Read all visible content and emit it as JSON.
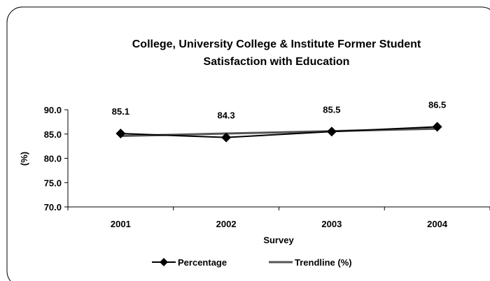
{
  "chart_data": {
    "type": "line",
    "title_lines": [
      "College, University College & Institute Former Student",
      "Satisfaction with Education"
    ],
    "xlabel": "Survey",
    "ylabel": "(%)",
    "categories": [
      "2001",
      "2002",
      "2003",
      "2004"
    ],
    "ylim": [
      70,
      90
    ],
    "yticks": [
      "70.0",
      "75.0",
      "80.0",
      "85.0",
      "90.0"
    ],
    "series": [
      {
        "name": "Percentage",
        "values": [
          85.1,
          84.3,
          85.5,
          86.5
        ],
        "data_labels": [
          "85.1",
          "84.3",
          "85.5",
          "86.5"
        ],
        "color": "#000000",
        "marker": "diamond"
      },
      {
        "name": "Trendline (%)",
        "values": [
          84.6,
          85.1,
          85.6,
          86.1
        ],
        "color": "#555555",
        "marker": "none"
      }
    ],
    "grid": false,
    "legend_position": "bottom"
  }
}
